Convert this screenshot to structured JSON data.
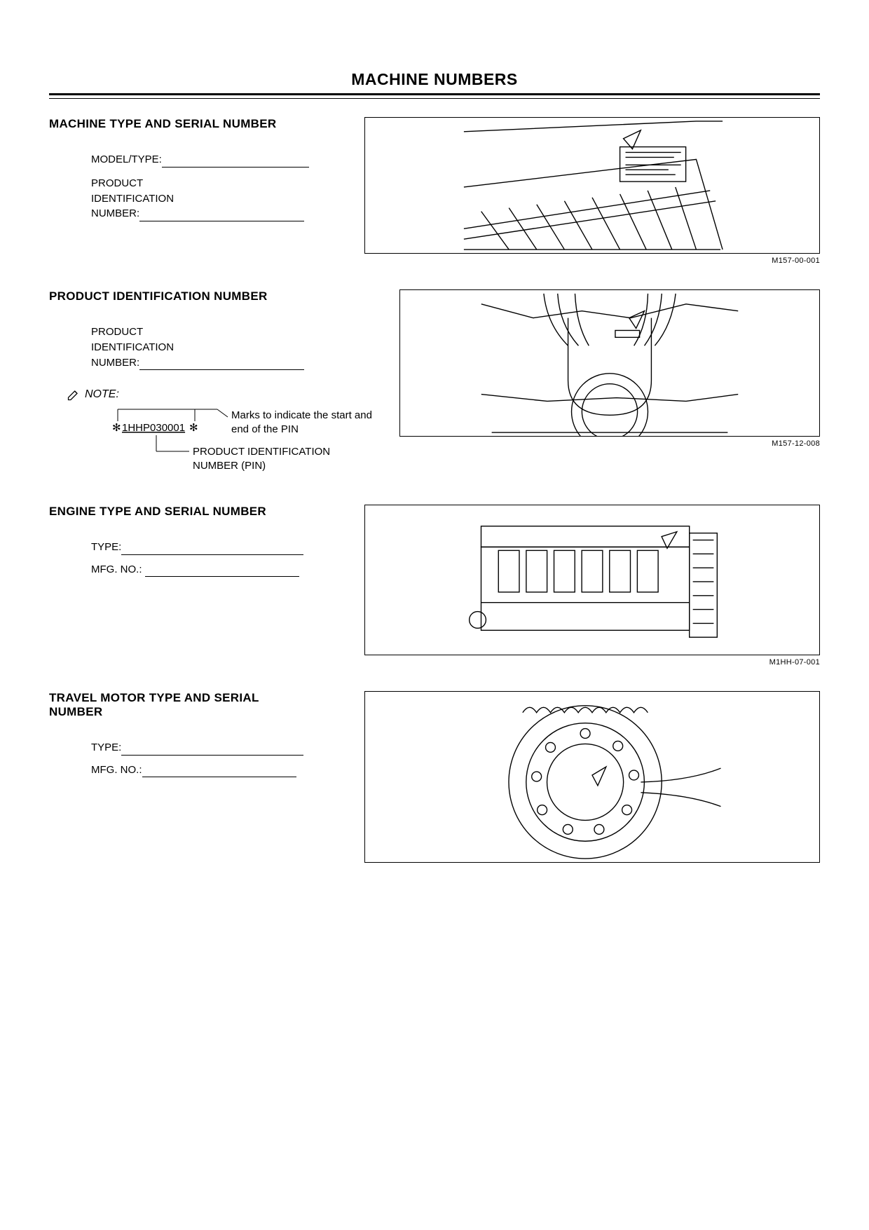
{
  "page": {
    "title": "MACHINE NUMBERS"
  },
  "sections": {
    "machine_type": {
      "heading": "MACHINE TYPE AND SERIAL NUMBER",
      "model_label": "MODEL/TYPE:",
      "pin_label_l1": "PRODUCT",
      "pin_label_l2": "IDENTIFICATION",
      "pin_label_l3": "NUMBER:",
      "figure_code": "M157-00-001",
      "figure_height": 195
    },
    "pin": {
      "heading": "PRODUCT IDENTIFICATION NUMBER",
      "pin_label_l1": "PRODUCT",
      "pin_label_l2": "IDENTIFICATION",
      "pin_label_l3": "NUMBER:",
      "note_label": "NOTE:",
      "pin_example": "1HHP030001",
      "marks_text_l1": "Marks to indicate the start and",
      "marks_text_l2": "end of the PIN",
      "pin_label_full_l1": "PRODUCT IDENTIFICATION",
      "pin_label_full_l2": "NUMBER (PIN)",
      "figure_code": "M157-12-008",
      "figure_height": 210
    },
    "engine": {
      "heading": "ENGINE TYPE AND SERIAL NUMBER",
      "type_label": "TYPE:",
      "mfg_label": "MFG. NO.: ",
      "figure_code": "M1HH-07-001",
      "figure_height": 215
    },
    "travel_motor": {
      "heading_l1": "TRAVEL MOTOR TYPE AND SERIAL",
      "heading_l2": "NUMBER",
      "type_label": "TYPE:",
      "mfg_label": "MFG. NO.:",
      "figure_height": 245
    }
  },
  "colors": {
    "text": "#000000",
    "bg": "#ffffff",
    "border": "#000000"
  },
  "fonts": {
    "title_size": 23,
    "heading_size": 17,
    "body_size": 15,
    "code_size": 11
  }
}
